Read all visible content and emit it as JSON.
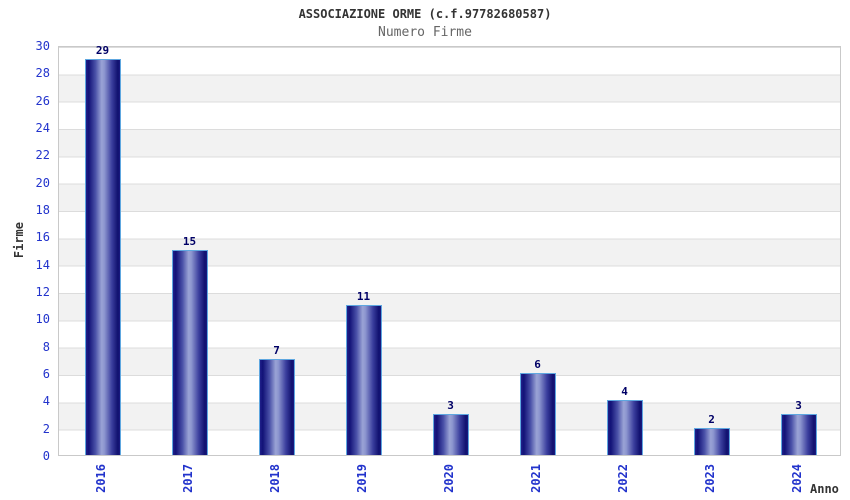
{
  "title": "ASSOCIAZIONE ORME (c.f.97782680587)",
  "subtitle": "Numero Firme",
  "chart_data": {
    "type": "bar",
    "title": "ASSOCIAZIONE ORME (c.f.97782680587)",
    "subtitle": "Numero Firme",
    "categories": [
      "2016",
      "2017",
      "2018",
      "2019",
      "2020",
      "2021",
      "2022",
      "2023",
      "2024"
    ],
    "values": [
      29,
      15,
      7,
      11,
      3,
      6,
      4,
      2,
      3
    ],
    "xlabel": "Anno",
    "ylabel": "Firme",
    "ylim": [
      0,
      30
    ],
    "ytick_step": 2,
    "yticks": [
      0,
      2,
      4,
      6,
      8,
      10,
      12,
      14,
      16,
      18,
      20,
      22,
      24,
      26,
      28,
      30
    ],
    "grid": "horizontal alternating bands",
    "legend_position": "none",
    "colors": {
      "bar_dark": "#10106e",
      "bar_light": "#9aa3d5",
      "bar_border": "#5ea7e0",
      "axis_tick_label": "#2233cc",
      "value_label": "#000066",
      "band_gray": "#f2f2f2",
      "band_white": "#ffffff",
      "plot_border": "#c9c9c9",
      "title_color": "#333333",
      "subtitle_color": "#666666"
    }
  }
}
